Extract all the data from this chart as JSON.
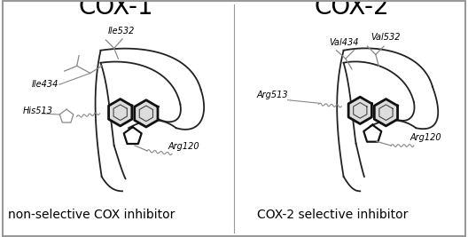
{
  "title_left": "COX-1",
  "title_right": "COX-2",
  "label_left": "non-selective COX inhibitor",
  "label_right": "COX-2 selective inhibitor",
  "bg_color": "#ffffff",
  "border_color": "#888888",
  "text_color": "#000000",
  "line_color": "#333333",
  "thin_color": "#888888",
  "title_fontsize": 20,
  "label_fontsize": 10,
  "anno_fontsize": 7
}
